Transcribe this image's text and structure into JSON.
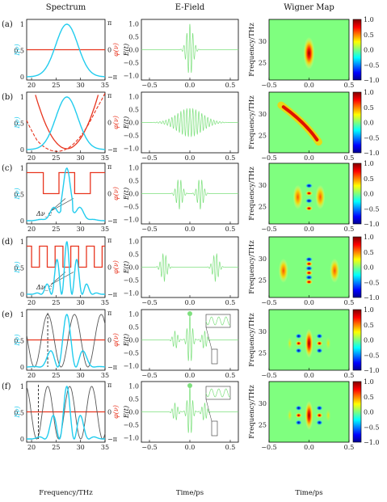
{
  "chart_data": {
    "type": "figure-grid",
    "columns": [
      {
        "title": "Spectrum",
        "xlabel": "Frequency/THz",
        "xticks": [
          "20",
          "25",
          "30",
          "35"
        ],
        "left_ylabel": "I(ν)",
        "right_ylabel": "φ(ν)",
        "left_yticks": [
          "0",
          "0.5",
          "1"
        ],
        "right_yticks": [
          "π",
          "0",
          "−π"
        ]
      },
      {
        "title": "E-Field",
        "xlabel": "Time/ps",
        "xticks": [
          "−0.5",
          "0.0",
          "0.5"
        ],
        "ylabel": "E(t)",
        "yticks": [
          "1.0",
          "0.5",
          "0.0",
          "−0.5",
          "−1.0"
        ]
      },
      {
        "title": "Wigner Map",
        "xlabel": "Time/ps",
        "xticks": [
          "−0.5",
          "0.0",
          "0.5"
        ],
        "ylabel": "Frequency/THz",
        "yticks": [
          "30",
          "25"
        ],
        "colorbar_ticks": [
          "1.0",
          "0.5",
          "0.0",
          "−0.5",
          "−1.0"
        ]
      }
    ],
    "rows": [
      {
        "label": "(a)",
        "phase": "flat"
      },
      {
        "label": "(b)",
        "phase": "quadratic"
      },
      {
        "label": "(c)",
        "phase": "step",
        "annotation": "Δν_c"
      },
      {
        "label": "(d)",
        "phase": "step",
        "annotation": "Δν_c"
      },
      {
        "label": "(e)",
        "phase": "sinusoidal"
      },
      {
        "label": "(f)",
        "phase": "sinusoidal"
      }
    ],
    "colors": {
      "intensity": "#22ccee",
      "phase": "#e8351f",
      "field": "#7ee07e",
      "grey": "#555555"
    }
  }
}
